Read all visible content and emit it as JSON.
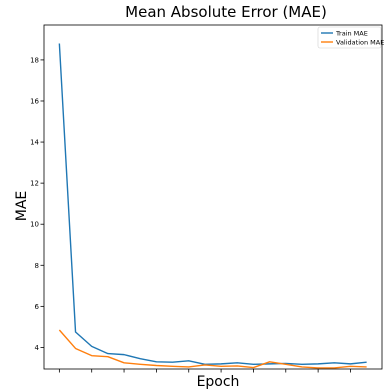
{
  "chart_data": {
    "type": "line",
    "title": "Mean Absolute Error (MAE)",
    "xlabel": "Epoch",
    "ylabel": "MAE",
    "x": [
      0,
      1,
      2,
      3,
      4,
      5,
      6,
      7,
      8,
      9,
      10,
      11,
      12,
      13,
      14,
      15,
      16,
      17,
      18,
      19
    ],
    "xlim": [
      -0.95,
      19.95
    ],
    "ylim": [
      2.95,
      19.7
    ],
    "yticks": [
      4,
      6,
      8,
      10,
      12,
      14,
      16,
      18
    ],
    "xtick_marks": [
      0,
      2,
      4,
      6,
      8,
      10,
      12,
      14,
      16,
      18
    ],
    "grid": false,
    "legend_position": "top-right",
    "series": [
      {
        "name": "Train MAE",
        "color": "#1f77b4",
        "values": [
          18.8,
          4.75,
          4.05,
          3.7,
          3.65,
          3.45,
          3.3,
          3.28,
          3.35,
          3.18,
          3.2,
          3.25,
          3.18,
          3.2,
          3.22,
          3.18,
          3.2,
          3.25,
          3.2,
          3.28
        ]
      },
      {
        "name": "Validation MAE",
        "color": "#ff7f0e",
        "values": [
          4.85,
          3.95,
          3.6,
          3.55,
          3.25,
          3.18,
          3.12,
          3.08,
          3.05,
          3.15,
          3.08,
          3.1,
          3.02,
          3.3,
          3.18,
          3.05,
          3.0,
          3.0,
          3.08,
          3.05
        ]
      }
    ]
  }
}
